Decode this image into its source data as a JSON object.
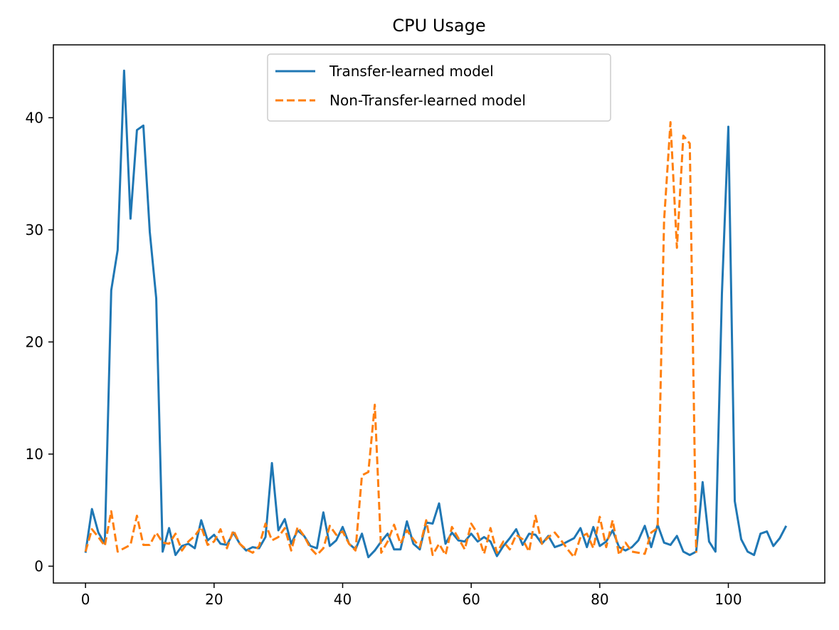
{
  "chart_data": {
    "type": "line",
    "title": "CPU Usage",
    "xlabel": "",
    "ylabel": "",
    "xlim": [
      -5,
      115
    ],
    "ylim": [
      -1.5,
      46.5
    ],
    "x_ticks": [
      0,
      20,
      40,
      60,
      80,
      100
    ],
    "y_ticks": [
      0,
      10,
      20,
      30,
      40
    ],
    "grid": false,
    "legend_position": "upper center",
    "series": [
      {
        "name": "Transfer-learned model",
        "color": "#1f77b4",
        "style": "solid",
        "x_start": 0,
        "values": [
          1.2,
          5.1,
          3.0,
          2.0,
          24.6,
          28.2,
          44.2,
          31.0,
          38.9,
          39.3,
          29.8,
          23.9,
          1.3,
          3.4,
          1.0,
          1.8,
          2.0,
          1.6,
          4.1,
          2.3,
          2.8,
          2.0,
          1.9,
          3.0,
          2.0,
          1.4,
          1.7,
          1.6,
          2.6,
          9.2,
          3.2,
          4.2,
          2.0,
          3.2,
          2.7,
          1.8,
          1.6,
          4.8,
          1.8,
          2.3,
          3.5,
          2.0,
          1.5,
          2.9,
          0.8,
          1.4,
          2.2,
          2.9,
          1.5,
          1.5,
          4.0,
          2.0,
          1.5,
          3.9,
          3.8,
          5.6,
          2.0,
          3.0,
          2.3,
          2.2,
          2.9,
          2.2,
          2.6,
          2.2,
          0.9,
          1.8,
          2.5,
          3.3,
          1.9,
          2.9,
          2.8,
          2.0,
          2.7,
          1.7,
          1.9,
          2.2,
          2.5,
          3.4,
          1.7,
          3.5,
          1.8,
          2.2,
          3.2,
          1.7,
          1.4,
          1.7,
          2.3,
          3.6,
          1.7,
          3.7,
          2.1,
          1.9,
          2.7,
          1.3,
          1.0,
          1.3,
          7.5,
          2.2,
          1.3,
          24.3,
          39.2,
          5.8,
          2.4,
          1.3,
          1.0,
          2.9,
          3.1,
          1.8,
          2.5,
          3.6
        ]
      },
      {
        "name": "Non-Transfer-learned model",
        "color": "#ff7f0e",
        "style": "dashed",
        "x_start": 0,
        "values": [
          1.3,
          3.3,
          2.6,
          1.8,
          4.9,
          1.3,
          1.6,
          1.9,
          4.5,
          1.9,
          1.9,
          3.0,
          2.1,
          2.0,
          2.9,
          1.4,
          2.2,
          2.7,
          3.5,
          1.9,
          2.2,
          3.3,
          1.6,
          3.2,
          2.0,
          1.5,
          1.2,
          1.8,
          3.8,
          2.3,
          2.6,
          3.4,
          1.4,
          3.5,
          2.7,
          1.6,
          1.0,
          1.6,
          3.6,
          2.8,
          3.1,
          2.0,
          1.4,
          8.1,
          8.4,
          14.4,
          1.2,
          2.2,
          3.7,
          2.0,
          3.2,
          2.4,
          1.7,
          4.1,
          1.0,
          2.0,
          1.0,
          3.5,
          2.5,
          1.5,
          3.8,
          2.9,
          1.1,
          3.4,
          1.2,
          2.2,
          1.5,
          2.8,
          2.4,
          1.3,
          4.5,
          2.0,
          2.6,
          3.0,
          2.3,
          1.5,
          0.8,
          2.6,
          2.9,
          1.6,
          4.4,
          1.7,
          4.1,
          1.0,
          2.1,
          1.3,
          1.2,
          1.1,
          3.0,
          3.4,
          30.8,
          39.6,
          28.4,
          38.4,
          37.7,
          1.2
        ]
      }
    ]
  }
}
